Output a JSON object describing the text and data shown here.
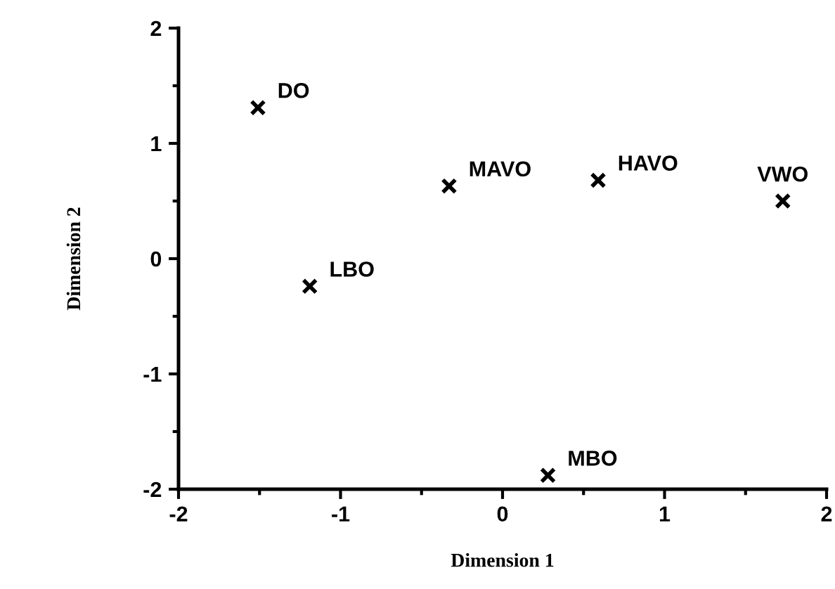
{
  "chart_data": {
    "type": "scatter",
    "xlabel": "Dimension 1",
    "ylabel": "Dimension 2",
    "x": [
      -1.51,
      -1.19,
      -0.33,
      0.59,
      1.73,
      0.28
    ],
    "values": [
      1.31,
      -0.24,
      0.63,
      0.68,
      0.5,
      -1.88
    ],
    "color": "#000000",
    "marker": "cross",
    "grid": false,
    "legend": false,
    "xlim": [
      -2,
      2
    ],
    "ylim": [
      -2,
      2
    ],
    "xticks": [
      -2,
      -1,
      0,
      1,
      2
    ],
    "yticks": [
      -2,
      -1,
      0,
      1,
      2
    ],
    "annotations": [
      {
        "text": "DO",
        "x": -1.51,
        "y": 1.31
      },
      {
        "text": "LBO",
        "x": -1.19,
        "y": -0.24
      },
      {
        "text": "MAVO",
        "x": -0.33,
        "y": 0.63
      },
      {
        "text": "HAVO",
        "x": 0.59,
        "y": 0.68
      },
      {
        "text": "VWO",
        "x": 1.73,
        "y": 0.5
      },
      {
        "text": "MBO",
        "x": 0.28,
        "y": -1.88
      }
    ]
  }
}
